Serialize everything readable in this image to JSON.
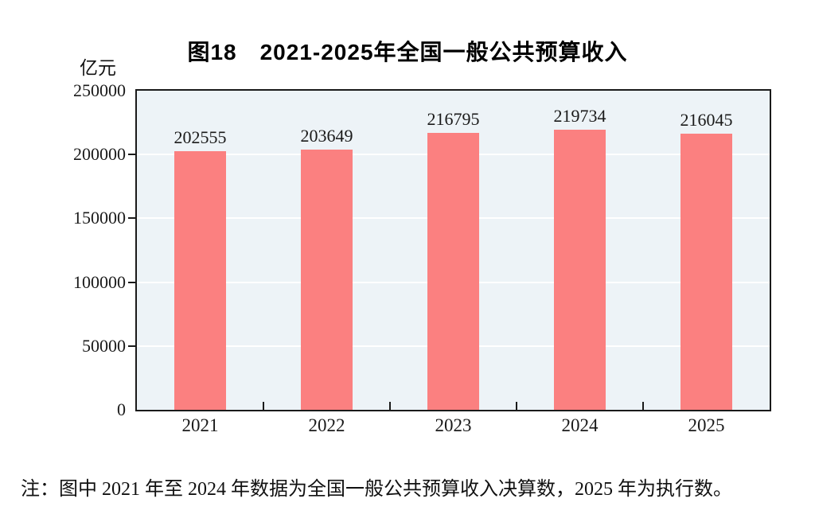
{
  "figure": {
    "title": "图18　2021-2025年全国一般公共预算收入",
    "unit_label": "亿元",
    "note": "注：图中 2021 年至 2024 年数据为全国一般公共预算收入决算数，2025 年为执行数。"
  },
  "colors": {
    "bar": "#fb8080",
    "plot_background": "#edf3f7",
    "gridline": "#ffffff",
    "axis": "#1a1a1a",
    "text": "#1a1a1a"
  },
  "chart_data": {
    "type": "bar",
    "categories": [
      "2021",
      "2022",
      "2023",
      "2024",
      "2025"
    ],
    "values": [
      202555,
      203649,
      216795,
      219734,
      216045
    ],
    "data_labels": [
      202555,
      203649,
      216795,
      219734,
      216045
    ],
    "title": "图18　2021-2025年全国一般公共预算收入",
    "xlabel": "",
    "ylabel": "亿元",
    "ylim": [
      0,
      250000
    ],
    "yticks": [
      0,
      50000,
      100000,
      150000,
      200000,
      250000
    ],
    "grid": true,
    "legend_position": "none",
    "note": "注：图中 2021 年至 2024 年数据为全国一般公共预算收入决算数，2025 年为执行数。"
  }
}
